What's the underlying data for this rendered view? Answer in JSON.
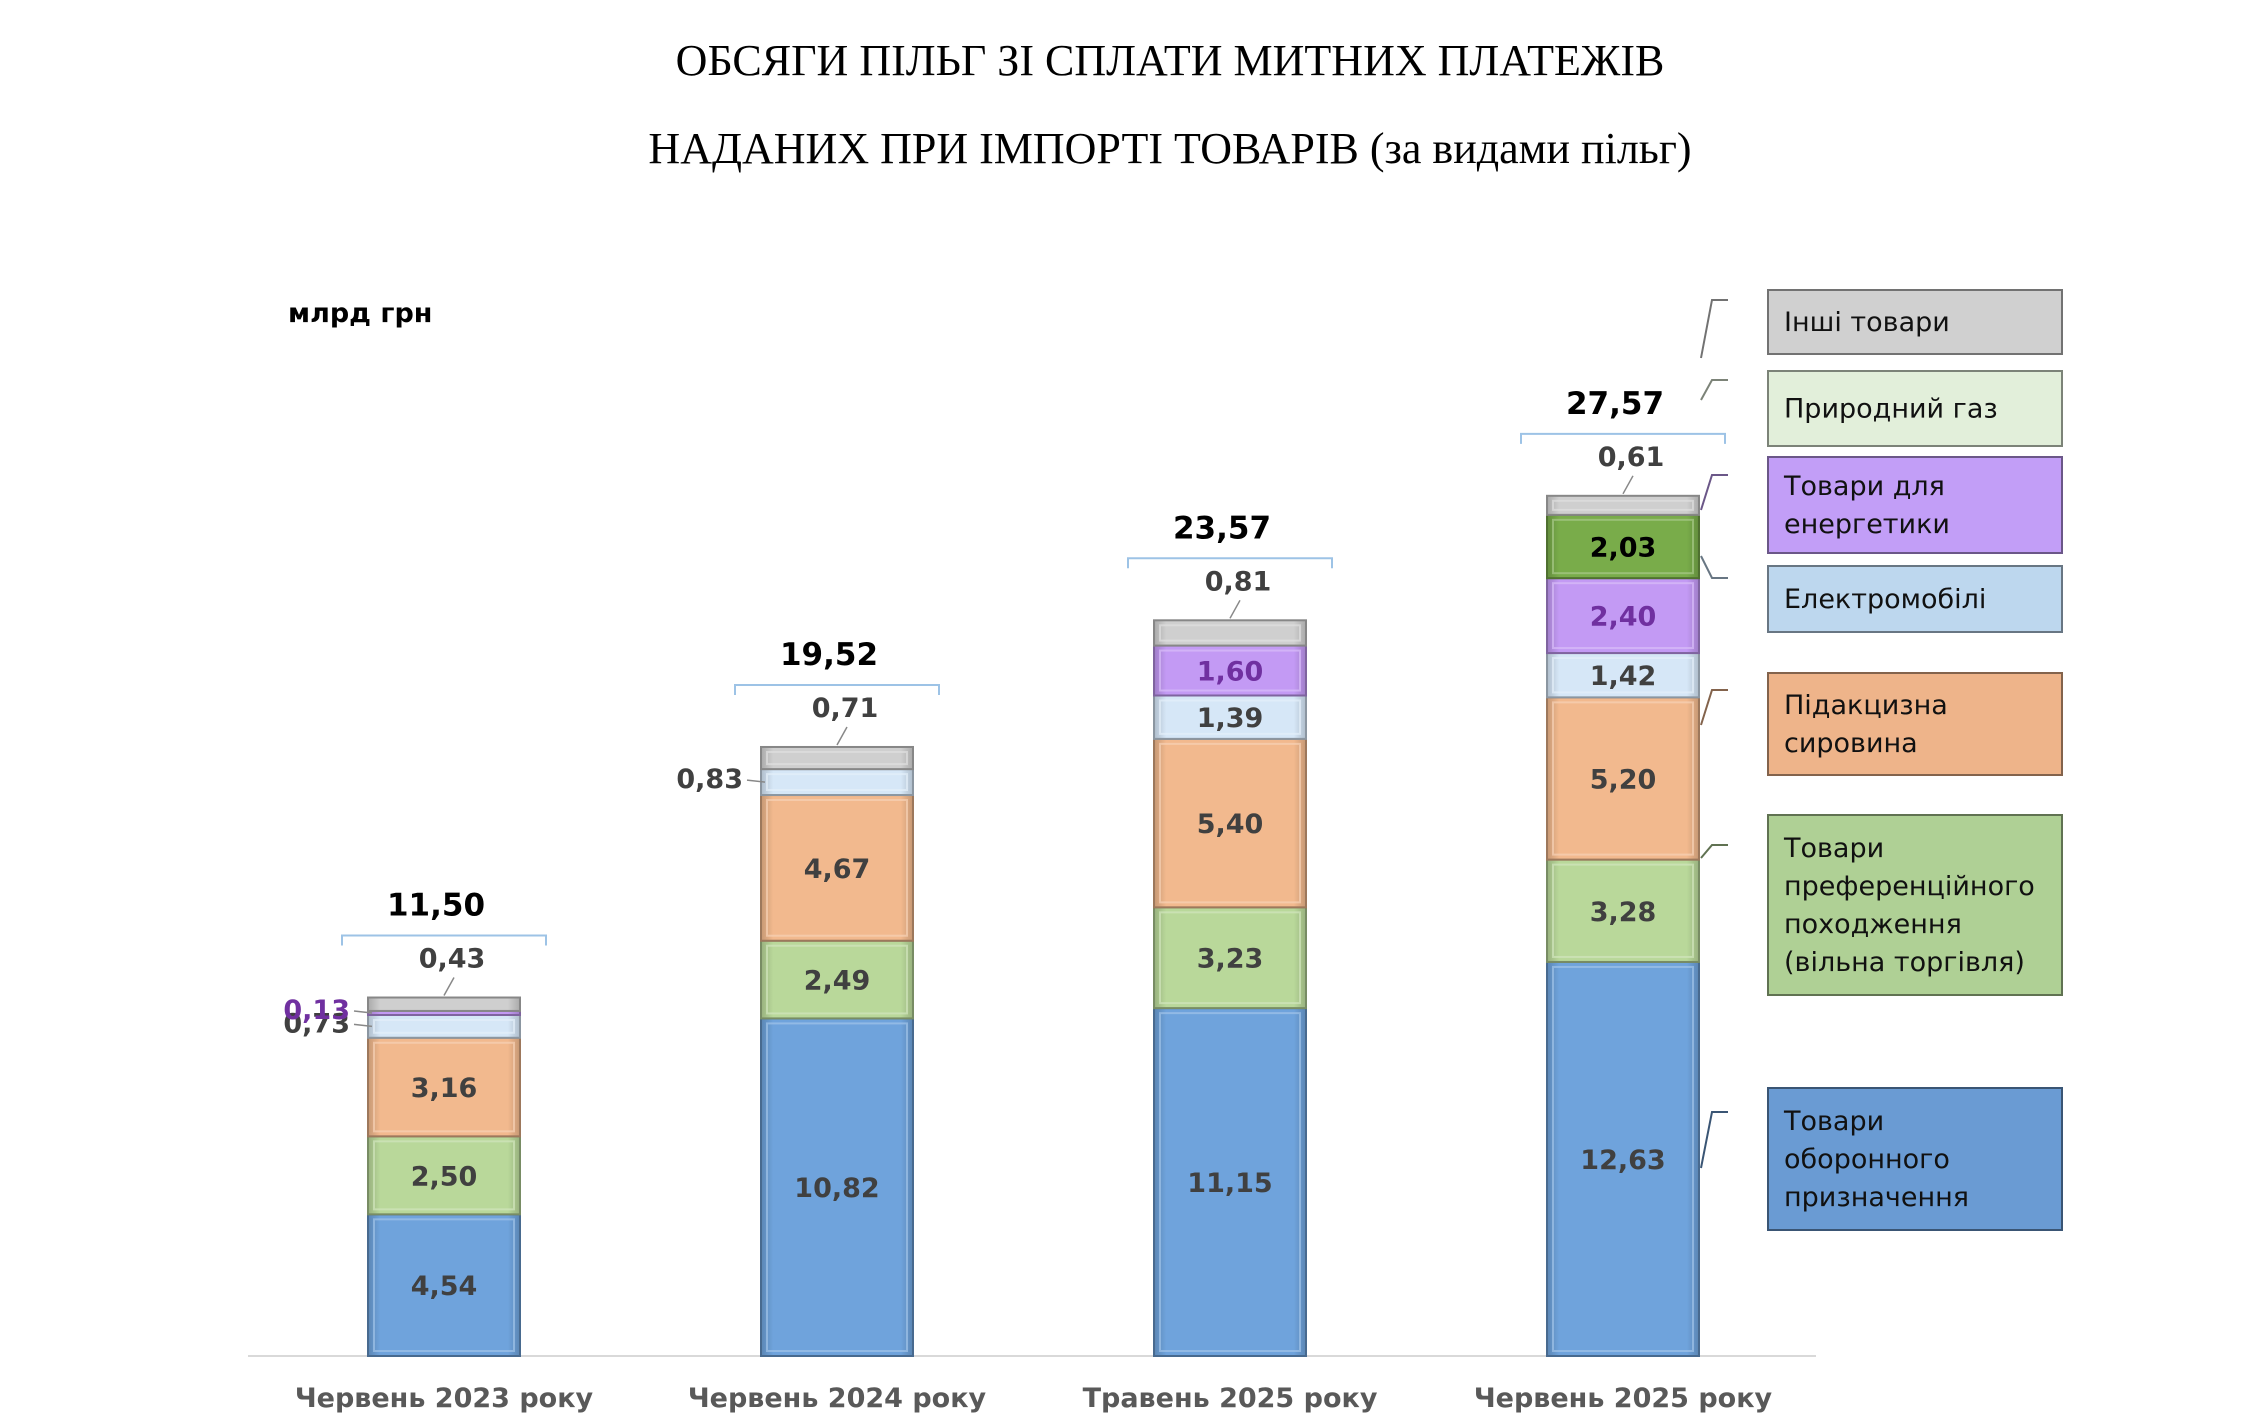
{
  "chart_data": {
    "type": "bar",
    "stacked": true,
    "title_lines": [
      "ОБСЯГИ ПІЛЬГ ЗІ СПЛАТИ МИТНИХ ПЛАТЕЖІВ",
      "НАДАНИХ ПРИ ІМПОРТІ ТОВАРІВ (за видами пільг)"
    ],
    "unit_label": "млрд грн",
    "categories": [
      "Червень 2023 року",
      "Червень 2024 року",
      "Травень 2025 року",
      "Червень 2025 року"
    ],
    "totals": [
      "11,50",
      "19,52",
      "23,57",
      "27,57"
    ],
    "ylim": [
      0,
      30
    ],
    "series": [
      {
        "name": "Товари оборонного призначення",
        "values": [
          4.54,
          10.82,
          11.15,
          12.63
        ],
        "labels": [
          "4,54",
          "10,82",
          "11,15",
          "12,63"
        ],
        "color": "#6fa3dc",
        "legend_color": "#6a9bd3",
        "label_color": "#404040"
      },
      {
        "name": "Товари преференційного походження (вільна торгівля)",
        "values": [
          2.5,
          2.49,
          3.23,
          3.28
        ],
        "labels": [
          "2,50",
          "2,49",
          "3,23",
          "3,28"
        ],
        "color": "#b9d89a",
        "legend_color": "#afd095",
        "label_color": "#404040"
      },
      {
        "name": "Підакцизна сировина",
        "values": [
          3.16,
          4.67,
          5.4,
          5.2
        ],
        "labels": [
          "3,16",
          "4,67",
          "5,40",
          "5,20"
        ],
        "color": "#f2b98e",
        "legend_color": "#eeb48a",
        "label_color": "#404040"
      },
      {
        "name": "Електромобілі",
        "values": [
          0.73,
          0.83,
          1.39,
          1.42
        ],
        "labels": [
          "0,73",
          "0,83",
          "1,39",
          "1,42"
        ],
        "color": "#d6e7f7",
        "legend_color": "#bdd7ee",
        "label_color": "#404040"
      },
      {
        "name": "Товари для енергетики",
        "values": [
          0.13,
          0,
          1.6,
          2.4
        ],
        "labels": [
          "0,13",
          "",
          "1,60",
          "2,40"
        ],
        "color": "#c39af4",
        "legend_color": "#c29ef7",
        "label_color": "#7030a0"
      },
      {
        "name": "Природний газ",
        "values": [
          0,
          0,
          0,
          2.03
        ],
        "labels": [
          "",
          "",
          "",
          "2,03"
        ],
        "color": "#79ac4a",
        "legend_color": "#e2efda",
        "label_color": "#000000"
      },
      {
        "name": "Інші товари",
        "values": [
          0.43,
          0.71,
          0.81,
          0.61
        ],
        "labels": [
          "0,43",
          "0,71",
          "0,81",
          "0,61"
        ],
        "color": "#cfcfcf",
        "legend_color": "#d0d0d0",
        "label_color": "#404040"
      }
    ],
    "legend_names": {
      "Інші товари": [
        "Інші товари"
      ],
      "Природний газ": [
        "Природний газ"
      ],
      "Товари для енергетики": [
        "Товари для",
        "енергетики"
      ],
      "Електромобілі": [
        "Електромобілі"
      ],
      "Підакцизна сировина": [
        "Підакцизна",
        "сировина"
      ],
      "Товари преференційного походження (вільна торгівля)": [
        "Товари",
        "преференційного",
        "походження",
        "(вільна торгівля)"
      ],
      "Товари оборонного призначення": [
        "Товари",
        "оборонного",
        "призначення"
      ]
    },
    "legend_order": [
      "Інші товари",
      "Природний газ",
      "Товари для енергетики",
      "Електромобілі",
      "Підакцизна сировина",
      "Товари преференційного походження (вільна торгівля)",
      "Товари оборонного призначення"
    ],
    "legend_placement": "right",
    "grid": false
  }
}
